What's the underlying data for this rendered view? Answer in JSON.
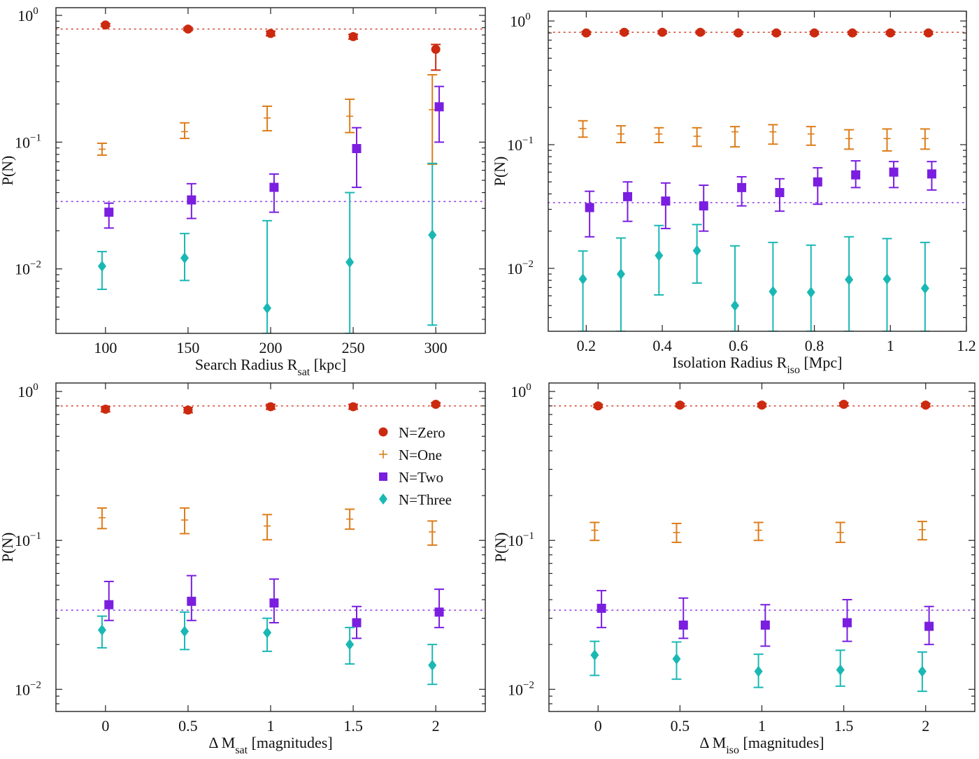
{
  "chart_data": [
    {
      "type": "scatter",
      "panel": "top-left",
      "xlabel": "Search Radius R",
      "xlabel_sub": "sat",
      "xlabel_suffix": " [kpc]",
      "ylabel": "P(N)",
      "yscale": "log",
      "xlim": [
        70,
        330
      ],
      "ylim": [
        0.0031,
        1.15
      ],
      "xticks": [
        100,
        150,
        200,
        250,
        300
      ],
      "xtick_labels": [
        "100",
        "150",
        "200",
        "250",
        "300"
      ],
      "yticks": [
        1,
        0.1,
        0.01
      ],
      "ytick_labels": [
        {
          "base": "10",
          "exp": "0"
        },
        {
          "base": "10",
          "exp": "−1"
        },
        {
          "base": "10",
          "exp": "−2"
        }
      ],
      "reference_lines": [
        {
          "series": "N=Zero",
          "y": 0.78
        },
        {
          "series": "N=Two",
          "y": 0.034
        }
      ],
      "series": [
        {
          "name": "N=Zero",
          "marker": "circle",
          "x": [
            100,
            150,
            200,
            250,
            300
          ],
          "y": [
            0.84,
            0.78,
            0.72,
            0.68,
            0.54
          ],
          "err_low": [
            0.82,
            0.76,
            0.69,
            0.65,
            0.37
          ],
          "err_high": [
            0.86,
            0.8,
            0.75,
            0.71,
            0.59
          ]
        },
        {
          "name": "N=One",
          "marker": "plus",
          "x": [
            100,
            150,
            200,
            250,
            300
          ],
          "y": [
            0.088,
            0.121,
            0.155,
            0.16,
            0.18
          ],
          "err_low": [
            0.079,
            0.107,
            0.123,
            0.119,
            0.067
          ],
          "err_high": [
            0.098,
            0.142,
            0.192,
            0.218,
            0.34
          ]
        },
        {
          "name": "N=Two",
          "marker": "square",
          "x": [
            100,
            150,
            200,
            250,
            300
          ],
          "y": [
            0.028,
            0.035,
            0.044,
            0.089,
            0.19
          ],
          "err_low": [
            0.021,
            0.025,
            0.028,
            0.044,
            0.1
          ],
          "err_high": [
            0.033,
            0.047,
            0.056,
            0.13,
            0.275
          ]
        },
        {
          "name": "N=Three",
          "marker": "diamond",
          "x": [
            100,
            150,
            200,
            250,
            300
          ],
          "y": [
            0.0105,
            0.0122,
            0.0049,
            0.0113,
            0.0185
          ],
          "err_low": [
            0.0069,
            0.0081,
            0.0031,
            0.0031,
            0.0036
          ],
          "err_high": [
            0.0137,
            0.019,
            0.024,
            0.04,
            0.068
          ]
        }
      ]
    },
    {
      "type": "scatter",
      "panel": "top-right",
      "xlabel": "Isolation Radius R",
      "xlabel_sub": "iso",
      "xlabel_suffix": " [Mpc]",
      "ylabel": "P(N)",
      "yscale": "log",
      "xlim": [
        0.1,
        1.2
      ],
      "ylim": [
        0.0031,
        1.2
      ],
      "xticks": [
        0.2,
        0.4,
        0.6,
        0.8,
        1.0,
        1.2
      ],
      "xtick_labels": [
        "0.2",
        "0.4",
        "0.6",
        "0.8",
        "1",
        "1.2"
      ],
      "yticks": [
        1,
        0.1,
        0.01
      ],
      "ytick_labels": [
        {
          "base": "10",
          "exp": "0"
        },
        {
          "base": "10",
          "exp": "−1"
        },
        {
          "base": "10",
          "exp": "−2"
        }
      ],
      "reference_lines": [
        {
          "series": "N=Zero",
          "y": 0.81
        },
        {
          "series": "N=Two",
          "y": 0.034
        }
      ],
      "series": [
        {
          "name": "N=Zero",
          "marker": "circle",
          "x": [
            0.2,
            0.3,
            0.4,
            0.5,
            0.6,
            0.7,
            0.8,
            0.9,
            1.0,
            1.1
          ],
          "y": [
            0.8,
            0.81,
            0.81,
            0.81,
            0.8,
            0.8,
            0.8,
            0.8,
            0.8,
            0.8
          ],
          "err_low": [
            0.78,
            0.79,
            0.79,
            0.79,
            0.78,
            0.78,
            0.78,
            0.78,
            0.78,
            0.78
          ],
          "err_high": [
            0.82,
            0.83,
            0.83,
            0.83,
            0.82,
            0.82,
            0.82,
            0.82,
            0.82,
            0.82
          ]
        },
        {
          "name": "N=One",
          "marker": "plus",
          "x": [
            0.2,
            0.3,
            0.4,
            0.5,
            0.6,
            0.7,
            0.8,
            0.9,
            1.0,
            1.1
          ],
          "y": [
            0.135,
            0.122,
            0.122,
            0.117,
            0.127,
            0.127,
            0.122,
            0.112,
            0.112,
            0.112
          ],
          "err_low": [
            0.115,
            0.104,
            0.104,
            0.097,
            0.096,
            0.101,
            0.099,
            0.092,
            0.089,
            0.092
          ],
          "err_high": [
            0.156,
            0.142,
            0.137,
            0.137,
            0.14,
            0.145,
            0.14,
            0.132,
            0.134,
            0.134
          ]
        },
        {
          "name": "N=Two",
          "marker": "square",
          "x": [
            0.2,
            0.3,
            0.4,
            0.5,
            0.6,
            0.7,
            0.8,
            0.9,
            1.0,
            1.1
          ],
          "y": [
            0.031,
            0.038,
            0.035,
            0.032,
            0.045,
            0.041,
            0.05,
            0.057,
            0.06,
            0.058
          ],
          "err_low": [
            0.018,
            0.024,
            0.021,
            0.02,
            0.032,
            0.029,
            0.033,
            0.045,
            0.045,
            0.043
          ],
          "err_high": [
            0.042,
            0.05,
            0.049,
            0.047,
            0.055,
            0.053,
            0.065,
            0.074,
            0.073,
            0.073
          ]
        },
        {
          "name": "N=Three",
          "marker": "diamond",
          "x": [
            0.2,
            0.3,
            0.4,
            0.5,
            0.6,
            0.7,
            0.8,
            0.9,
            1.0,
            1.1
          ],
          "y": [
            0.0082,
            0.009,
            0.0127,
            0.0139,
            0.005,
            0.0065,
            0.0064,
            0.0081,
            0.0082,
            0.0069
          ],
          "err_low": [
            0.0031,
            0.0031,
            0.0061,
            0.0076,
            0.0031,
            0.0031,
            0.0031,
            0.0031,
            0.0031,
            0.0031
          ],
          "err_high": [
            0.0138,
            0.0176,
            0.0222,
            0.0226,
            0.0152,
            0.0162,
            0.0154,
            0.018,
            0.0174,
            0.0162
          ]
        }
      ]
    },
    {
      "type": "scatter",
      "panel": "bottom-left",
      "xlabel": "Δ M",
      "xlabel_sub": "sat",
      "xlabel_suffix": " [magnitudes]",
      "ylabel": "P(N)",
      "yscale": "log",
      "xlim": [
        -0.3,
        2.3
      ],
      "ylim": [
        0.0071,
        1.14
      ],
      "xticks": [
        0,
        0.5,
        1,
        1.5,
        2
      ],
      "xtick_labels": [
        "0",
        "0.5",
        "1",
        "1.5",
        "2"
      ],
      "yticks": [
        1,
        0.1,
        0.01
      ],
      "ytick_labels": [
        {
          "base": "10",
          "exp": "0"
        },
        {
          "base": "10",
          "exp": "−1"
        },
        {
          "base": "10",
          "exp": "−2"
        }
      ],
      "legend": {
        "position": "upper-right",
        "entries": [
          "N=Zero",
          "N=One",
          "N=Two",
          "N=Three"
        ]
      },
      "reference_lines": [
        {
          "series": "N=Zero",
          "y": 0.8
        },
        {
          "series": "N=Two",
          "y": 0.034
        }
      ],
      "series": [
        {
          "name": "N=Zero",
          "marker": "circle",
          "x": [
            0,
            0.5,
            1,
            1.5,
            2
          ],
          "y": [
            0.76,
            0.75,
            0.79,
            0.79,
            0.82
          ],
          "err_low": [
            0.73,
            0.72,
            0.76,
            0.76,
            0.8
          ],
          "err_high": [
            0.79,
            0.78,
            0.82,
            0.82,
            0.84
          ]
        },
        {
          "name": "N=One",
          "marker": "plus",
          "x": [
            0,
            0.5,
            1,
            1.5,
            2
          ],
          "y": [
            0.142,
            0.137,
            0.125,
            0.139,
            0.114
          ],
          "err_low": [
            0.12,
            0.111,
            0.101,
            0.119,
            0.093
          ],
          "err_high": [
            0.165,
            0.165,
            0.149,
            0.162,
            0.135
          ]
        },
        {
          "name": "N=Two",
          "marker": "square",
          "x": [
            0,
            0.5,
            1,
            1.5,
            2
          ],
          "y": [
            0.037,
            0.039,
            0.038,
            0.028,
            0.033
          ],
          "err_low": [
            0.029,
            0.029,
            0.028,
            0.022,
            0.026
          ],
          "err_high": [
            0.053,
            0.058,
            0.055,
            0.036,
            0.047
          ]
        },
        {
          "name": "N=Three",
          "marker": "diamond",
          "x": [
            0,
            0.5,
            1,
            1.5,
            2
          ],
          "y": [
            0.025,
            0.0245,
            0.024,
            0.02,
            0.0145
          ],
          "err_low": [
            0.019,
            0.0185,
            0.018,
            0.0148,
            0.0108
          ],
          "err_high": [
            0.031,
            0.033,
            0.03,
            0.026,
            0.02
          ]
        }
      ]
    },
    {
      "type": "scatter",
      "panel": "bottom-right",
      "xlabel": "Δ M",
      "xlabel_sub": "iso",
      "xlabel_suffix": " [magnitudes]",
      "ylabel": "P(N)",
      "yscale": "log",
      "xlim": [
        -0.3,
        2.3
      ],
      "ylim": [
        0.0071,
        1.14
      ],
      "xticks": [
        0,
        0.5,
        1,
        1.5,
        2
      ],
      "xtick_labels": [
        "0",
        "0.5",
        "1",
        "1.5",
        "2"
      ],
      "yticks": [
        1,
        0.1,
        0.01
      ],
      "ytick_labels": [
        {
          "base": "10",
          "exp": "0"
        },
        {
          "base": "10",
          "exp": "−1"
        },
        {
          "base": "10",
          "exp": "−2"
        }
      ],
      "reference_lines": [
        {
          "series": "N=Zero",
          "y": 0.8
        },
        {
          "series": "N=Two",
          "y": 0.034
        }
      ],
      "series": [
        {
          "name": "N=Zero",
          "marker": "circle",
          "x": [
            0,
            0.5,
            1,
            1.5,
            2
          ],
          "y": [
            0.8,
            0.81,
            0.81,
            0.82,
            0.81
          ],
          "err_low": [
            0.78,
            0.79,
            0.79,
            0.8,
            0.79
          ],
          "err_high": [
            0.82,
            0.83,
            0.83,
            0.84,
            0.83
          ]
        },
        {
          "name": "N=One",
          "marker": "plus",
          "x": [
            0,
            0.5,
            1,
            1.5,
            2
          ],
          "y": [
            0.117,
            0.113,
            0.117,
            0.113,
            0.118
          ],
          "err_low": [
            0.1,
            0.097,
            0.1,
            0.097,
            0.101
          ],
          "err_high": [
            0.132,
            0.13,
            0.132,
            0.132,
            0.134
          ]
        },
        {
          "name": "N=Two",
          "marker": "square",
          "x": [
            0,
            0.5,
            1,
            1.5,
            2
          ],
          "y": [
            0.035,
            0.027,
            0.027,
            0.028,
            0.0265
          ],
          "err_low": [
            0.026,
            0.022,
            0.0195,
            0.021,
            0.02
          ],
          "err_high": [
            0.046,
            0.041,
            0.037,
            0.04,
            0.036
          ]
        },
        {
          "name": "N=Three",
          "marker": "diamond",
          "x": [
            0,
            0.5,
            1,
            1.5,
            2
          ],
          "y": [
            0.017,
            0.016,
            0.0132,
            0.0135,
            0.0132
          ],
          "err_low": [
            0.0124,
            0.0117,
            0.0103,
            0.0105,
            0.0097
          ],
          "err_high": [
            0.021,
            0.0208,
            0.0172,
            0.0183,
            0.0178
          ]
        }
      ]
    }
  ],
  "colors": {
    "N=Zero": "#cc2a10",
    "N=One": "#dd7d1a",
    "N=Two": "#7a1ee0",
    "N=Three": "#1ab8b4"
  }
}
